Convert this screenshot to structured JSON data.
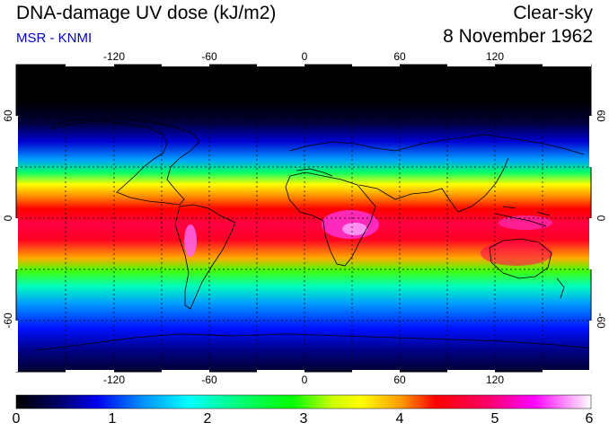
{
  "header": {
    "title": "DNA-damage UV dose (kJ/m2)",
    "credit": "MSR - KNMI",
    "sky_condition": "Clear-sky",
    "date": "8 November 1962"
  },
  "map": {
    "projection": "equirectangular",
    "lon_range": [
      -180,
      180
    ],
    "lat_range": [
      -90,
      90
    ],
    "lon_ticks": [
      "-120",
      "-60",
      "0",
      "60",
      "120"
    ],
    "lat_ticks": [
      "60",
      "0",
      "-60"
    ],
    "lat_ticks_right": [
      "60",
      "0",
      "-60"
    ],
    "grid": "dashed every 30 degrees",
    "coastlines": true
  },
  "colorbar": {
    "min": 0,
    "max": 6,
    "labels": [
      "0",
      "1",
      "2",
      "3",
      "4",
      "5",
      "6"
    ]
  },
  "colors": {
    "scale": [
      "#000000",
      "#00008b",
      "#0000ff",
      "#00b4ff",
      "#00ffff",
      "#00ff00",
      "#ffff00",
      "#ff9900",
      "#ff0000",
      "#ff0066",
      "#ff00ff",
      "#ffffff"
    ]
  }
}
